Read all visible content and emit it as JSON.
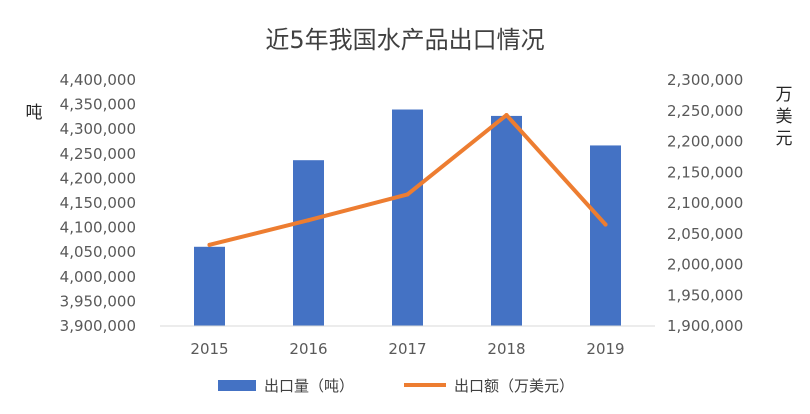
{
  "chart_data": {
    "type": "bar+line",
    "title": "近5年我国水产品出口情况",
    "categories": [
      "2015",
      "2016",
      "2017",
      "2018",
      "2019"
    ],
    "series": [
      {
        "name": "出口量（吨）",
        "type": "bar",
        "axis": "left",
        "color": "#4472C4",
        "values": [
          4061000,
          4237000,
          4340000,
          4327000,
          4267000
        ]
      },
      {
        "name": "出口额（万美元）",
        "type": "line",
        "axis": "right",
        "color": "#ED7D31",
        "values": [
          2032000,
          2072000,
          2114000,
          2243000,
          2065000
        ]
      }
    ],
    "y_left": {
      "label": "吨",
      "range": [
        3900000,
        4400000
      ],
      "ticks": [
        "3,900,000",
        "3,950,000",
        "4,000,000",
        "4,050,000",
        "4,100,000",
        "4,150,000",
        "4,200,000",
        "4,250,000",
        "4,300,000",
        "4,350,000",
        "4,400,000"
      ]
    },
    "y_right": {
      "label": "万美元",
      "range": [
        1900000,
        2300000
      ],
      "ticks": [
        "1,900,000",
        "1,950,000",
        "2,000,000",
        "2,050,000",
        "2,100,000",
        "2,150,000",
        "2,200,000",
        "2,250,000",
        "2,300,000"
      ]
    },
    "legend_position": "bottom",
    "grid": false
  }
}
